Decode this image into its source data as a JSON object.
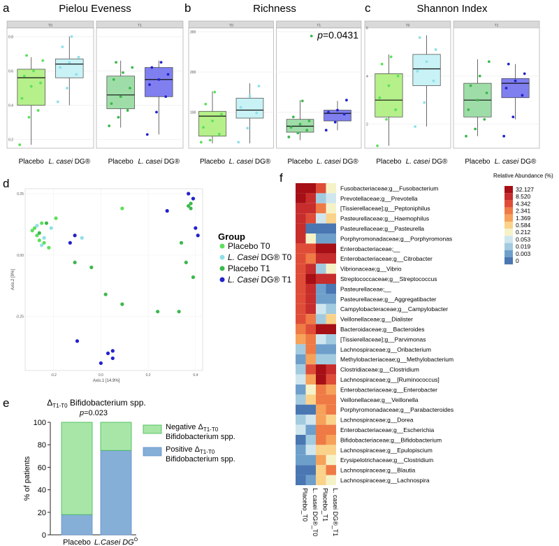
{
  "colors": {
    "placebo_t0": "#5CE05C",
    "casei_t0": "#8EE0E8",
    "placebo_t1": "#3CB84C",
    "casei_t1": "#2222CC",
    "box_placebo_t0": "#B5F08A",
    "box_casei_t0": "#C8F2F5",
    "box_placebo_t1": "#9FDDA8",
    "box_casei_t1": "#7F7FF0",
    "bar_negative": "#A8E6A8",
    "bar_positive": "#86AFD8"
  },
  "panel_labels": [
    "a",
    "b",
    "c",
    "d",
    "e",
    "f"
  ],
  "box_panels": [
    {
      "title": "Pielou Eveness",
      "facets": [
        "T0",
        "T1"
      ],
      "ylim": [
        0.15,
        0.85
      ],
      "yticks": [
        "0.2",
        "0.4",
        "0.6",
        "0.8"
      ],
      "ytick_values": [
        0.2,
        0.4,
        0.6,
        0.8
      ],
      "pvalue": "",
      "groups": [
        {
          "facet": 0,
          "label": "Placebo",
          "italic": "",
          "suffix": "",
          "color": "placebo_t0",
          "box": "box_placebo_t0",
          "min": 0.17,
          "q1": 0.4,
          "median": 0.56,
          "q3": 0.61,
          "max": 0.68,
          "points": [
            0.17,
            0.33,
            0.37,
            0.44,
            0.51,
            0.53,
            0.57,
            0.6,
            0.66,
            0.69
          ]
        },
        {
          "facet": 0,
          "label": "",
          "italic": "L. casei",
          "suffix": " DG®",
          "color": "casei_t0",
          "box": "box_casei_t0",
          "min": 0.4,
          "q1": 0.56,
          "median": 0.64,
          "q3": 0.67,
          "max": 0.8,
          "points": [
            0.42,
            0.5,
            0.58,
            0.62,
            0.65,
            0.68,
            0.74,
            0.8
          ]
        },
        {
          "facet": 1,
          "label": "Placebo",
          "italic": "",
          "suffix": "",
          "color": "placebo_t1",
          "box": "box_placebo_t1",
          "min": 0.27,
          "q1": 0.38,
          "median": 0.46,
          "q3": 0.57,
          "max": 0.66,
          "points": [
            0.28,
            0.33,
            0.37,
            0.41,
            0.45,
            0.5,
            0.55,
            0.59,
            0.62,
            0.65
          ]
        },
        {
          "facet": 1,
          "label": "",
          "italic": "L. casei",
          "suffix": " DG®",
          "color": "casei_t1",
          "box": "box_casei_t1",
          "min": 0.23,
          "q1": 0.45,
          "median": 0.55,
          "q3": 0.62,
          "max": 0.66,
          "points": [
            0.23,
            0.36,
            0.45,
            0.52,
            0.55,
            0.58,
            0.62,
            0.65
          ]
        }
      ]
    },
    {
      "title": "Richness",
      "facets": [
        "T0",
        "T1"
      ],
      "ylim": [
        10,
        310
      ],
      "yticks": [
        "100",
        "200",
        "300"
      ],
      "ytick_values": [
        100,
        200,
        300
      ],
      "pvalue": "=0.0431",
      "groups": [
        {
          "facet": 0,
          "label": "Placebo",
          "italic": "",
          "suffix": "",
          "color": "placebo_t0",
          "box": "box_placebo_t0",
          "min": 22,
          "q1": 40,
          "median": 90,
          "q3": 102,
          "max": 152,
          "points": [
            25,
            30,
            45,
            62,
            78,
            95,
            120,
            150
          ]
        },
        {
          "facet": 0,
          "label": "",
          "italic": "L. casei",
          "suffix": " DG®",
          "color": "casei_t0",
          "box": "box_casei_t0",
          "min": 22,
          "q1": 85,
          "median": 105,
          "q3": 135,
          "max": 172,
          "points": [
            25,
            60,
            98,
            112,
            140,
            165
          ]
        },
        {
          "facet": 1,
          "label": "Placebo",
          "italic": "",
          "suffix": "",
          "color": "placebo_t1",
          "box": "box_placebo_t1",
          "min": 30,
          "q1": 50,
          "median": 65,
          "q3": 82,
          "max": 130,
          "points": [
            38,
            48,
            55,
            62,
            70,
            78,
            88,
            128,
            290
          ]
        },
        {
          "facet": 1,
          "label": "",
          "italic": "L. casei",
          "suffix": " DG®",
          "color": "casei_t1",
          "box": "box_casei_t1",
          "min": 55,
          "q1": 78,
          "median": 97,
          "q3": 105,
          "max": 128,
          "points": [
            55,
            75,
            95,
            100,
            105,
            130
          ]
        }
      ]
    },
    {
      "title": "Shannon Index",
      "facets": [
        "T0",
        "T1"
      ],
      "ylim": [
        1,
        6
      ],
      "yticks": [
        "2",
        "4",
        "6"
      ],
      "ytick_values": [
        2,
        4,
        6
      ],
      "pvalue": "",
      "groups": [
        {
          "facet": 0,
          "label": "Placebo",
          "italic": "",
          "suffix": "",
          "color": "placebo_t0",
          "box": "box_placebo_t0",
          "min": 1.1,
          "q1": 2.3,
          "median": 3.0,
          "q3": 4.1,
          "max": 4.9,
          "points": [
            1.1,
            2.2,
            2.6,
            3.1,
            3.6,
            4.0,
            4.5,
            4.8
          ]
        },
        {
          "facet": 0,
          "label": "",
          "italic": "L. casei",
          "suffix": " DG®",
          "color": "casei_t0",
          "box": "box_casei_t0",
          "min": 1.9,
          "q1": 3.6,
          "median": 4.3,
          "q3": 4.9,
          "max": 5.7,
          "points": [
            1.9,
            2.9,
            3.8,
            4.2,
            4.6,
            5.1,
            5.6
          ]
        },
        {
          "facet": 1,
          "label": "Placebo",
          "italic": "",
          "suffix": "",
          "color": "placebo_t1",
          "box": "box_placebo_t1",
          "min": 1.5,
          "q1": 2.3,
          "median": 3.0,
          "q3": 3.7,
          "max": 4.7,
          "points": [
            1.5,
            1.8,
            2.2,
            2.6,
            3.0,
            3.3,
            3.6,
            4.0,
            4.6
          ]
        },
        {
          "facet": 1,
          "label": "",
          "italic": "L. casei",
          "suffix": " DG®",
          "color": "casei_t1",
          "box": "box_casei_t1",
          "min": 2.2,
          "q1": 3.1,
          "median": 3.7,
          "q3": 3.9,
          "max": 4.5,
          "points": [
            1.5,
            2.3,
            3.2,
            3.5,
            3.8,
            4.1,
            4.5
          ]
        }
      ]
    }
  ],
  "pcoa": {
    "xlabel": "Axis.1  [14.9%]",
    "ylabel": "Axis.2  [9%]",
    "xlim": [
      -0.32,
      0.43
    ],
    "ylim": [
      -0.47,
      0.27
    ],
    "xticks": [
      "-0.2",
      "0.0",
      "0.2",
      "0.4"
    ],
    "xtick_values": [
      -0.2,
      0.0,
      0.2,
      0.4
    ],
    "yticks": [
      "0.25",
      "0.00",
      "-0.25"
    ],
    "ytick_values": [
      0.25,
      0.0,
      -0.25
    ],
    "legend_title": "Group",
    "legend": [
      {
        "pre": "Placebo T0",
        "italic": "",
        "post": "",
        "color": "placebo_t0"
      },
      {
        "pre": "",
        "italic": "L. Casei",
        "post": " DG® T0",
        "color": "casei_t0"
      },
      {
        "pre": "Placebo T1",
        "italic": "",
        "post": "",
        "color": "placebo_t1"
      },
      {
        "pre": "",
        "italic": "L. Casei",
        "post": " DG® T1",
        "color": "casei_t1"
      }
    ],
    "points": [
      {
        "g": "placebo_t0",
        "x": -0.29,
        "y": 0.1
      },
      {
        "g": "placebo_t0",
        "x": -0.28,
        "y": 0.11
      },
      {
        "g": "placebo_t0",
        "x": -0.27,
        "y": 0.08
      },
      {
        "g": "placebo_t0",
        "x": -0.26,
        "y": 0.06
      },
      {
        "g": "placebo_t0",
        "x": -0.24,
        "y": 0.05
      },
      {
        "g": "placebo_t0",
        "x": -0.25,
        "y": 0.13
      },
      {
        "g": "placebo_t0",
        "x": -0.22,
        "y": 0.03
      },
      {
        "g": "placebo_t0",
        "x": -0.19,
        "y": 0.15
      },
      {
        "g": "placebo_t0",
        "x": 0.09,
        "y": 0.19
      },
      {
        "g": "casei_t0",
        "x": -0.25,
        "y": 0.04
      },
      {
        "g": "casei_t0",
        "x": -0.24,
        "y": 0.07
      },
      {
        "g": "casei_t0",
        "x": -0.21,
        "y": 0.11
      },
      {
        "g": "casei_t0",
        "x": -0.08,
        "y": 0.07
      },
      {
        "g": "casei_t0",
        "x": -0.27,
        "y": 0.12
      },
      {
        "g": "placebo_t1",
        "x": -0.26,
        "y": 0.09
      },
      {
        "g": "placebo_t1",
        "x": -0.23,
        "y": 0.13
      },
      {
        "g": "placebo_t1",
        "x": -0.11,
        "y": -0.03
      },
      {
        "g": "placebo_t1",
        "x": -0.04,
        "y": -0.05
      },
      {
        "g": "placebo_t1",
        "x": 0.02,
        "y": -0.16
      },
      {
        "g": "placebo_t1",
        "x": 0.09,
        "y": -0.2
      },
      {
        "g": "placebo_t1",
        "x": 0.24,
        "y": -0.23
      },
      {
        "g": "placebo_t1",
        "x": 0.33,
        "y": -0.23
      },
      {
        "g": "placebo_t1",
        "x": 0.34,
        "y": 0.05
      },
      {
        "g": "placebo_t1",
        "x": 0.36,
        "y": -0.03
      },
      {
        "g": "placebo_t1",
        "x": 0.37,
        "y": 0.2
      },
      {
        "g": "placebo_t1",
        "x": 0.38,
        "y": 0.19
      },
      {
        "g": "placebo_t1",
        "x": 0.39,
        "y": 0.23
      },
      {
        "g": "placebo_t1",
        "x": 0.39,
        "y": -0.09
      },
      {
        "g": "placebo_t1",
        "x": 0.38,
        "y": 0.21
      },
      {
        "g": "casei_t1",
        "x": -0.13,
        "y": 0.05
      },
      {
        "g": "casei_t1",
        "x": -0.11,
        "y": 0.08
      },
      {
        "g": "casei_t1",
        "x": -0.1,
        "y": -0.35
      },
      {
        "g": "casei_t1",
        "x": 0.03,
        "y": -0.4
      },
      {
        "g": "casei_t1",
        "x": 0.05,
        "y": -0.42
      },
      {
        "g": "casei_t1",
        "x": 0.05,
        "y": -0.39
      },
      {
        "g": "casei_t1",
        "x": 0.0,
        "y": -0.44
      },
      {
        "g": "casei_t1",
        "x": 0.28,
        "y": 0.18
      },
      {
        "g": "casei_t1",
        "x": 0.37,
        "y": 0.25
      },
      {
        "g": "casei_t1",
        "x": 0.39,
        "y": 0.23
      },
      {
        "g": "casei_t1",
        "x": 0.4,
        "y": 0.11
      },
      {
        "g": "casei_t1",
        "x": 0.41,
        "y": 0.08
      }
    ]
  },
  "stacked_bar": {
    "title_pre": "Δ",
    "title_sub": "T1-T0",
    "title_post": " Bifidobacterium spp.",
    "pvalue": "=0.023",
    "ylabel": "% of patients",
    "yticks": [
      "0",
      "20",
      "40",
      "60",
      "80",
      "100"
    ],
    "ytick_values": [
      0,
      20,
      40,
      60,
      80,
      100
    ],
    "categories": [
      {
        "label": "Placebo",
        "positive": 18,
        "negative": 82
      },
      {
        "label": "L.Casei DG",
        "sup": "Ò",
        "positive": 75,
        "negative": 25
      }
    ],
    "legend": [
      {
        "line1_pre": "Negative Δ",
        "line1_sub": "T1-T0",
        "line2": "Bifidobacterium spp.",
        "color": "bar_negative"
      },
      {
        "line1_pre": "Positive Δ",
        "line1_sub": "T1-T0",
        "line2": "Bifidobacterium spp.",
        "color": "bar_positive"
      }
    ]
  },
  "heatmap": {
    "legend_title": "Relative Abundance (%)",
    "legend_values": [
      "32.127",
      "8.520",
      "4.342",
      "2.341",
      "1.369",
      "0.584",
      "0.212",
      "0.053",
      "0.019",
      "0.003",
      "0"
    ],
    "legend_colors": [
      "#A50F15",
      "#C72D2D",
      "#DF4D38",
      "#EF7A45",
      "#F6A25A",
      "#FBD28A",
      "#F6F2C8",
      "#CFE6EF",
      "#A2CBE0",
      "#6E9FCB",
      "#4A76B2"
    ],
    "columns": [
      "Placebo_T0",
      "L. casei DG®_T0",
      "Placebo_T1",
      "L. casei DG®_T1"
    ],
    "rows": [
      {
        "label": "Fusobacteriaceae;g__Fusobacterium",
        "v": [
          0,
          0,
          2,
          6
        ]
      },
      {
        "label": "Prevotellaceae;g__Prevotella",
        "v": [
          0,
          1,
          8,
          7
        ]
      },
      {
        "label": "[Tissierellaceae];g__Peptoniphilus",
        "v": [
          1,
          1,
          3,
          6
        ]
      },
      {
        "label": "Pasteurellaceae;g__Haemophilus",
        "v": [
          1,
          2,
          7,
          5
        ]
      },
      {
        "label": "Pasteurellaceae;g__Pasteurella",
        "v": [
          1,
          10,
          10,
          10
        ]
      },
      {
        "label": "Porphyromonadaceae;g__Porphyromonas",
        "v": [
          1,
          6,
          9,
          9
        ]
      },
      {
        "label": "Enterobacteriaceae;__",
        "v": [
          2,
          2,
          0,
          0
        ]
      },
      {
        "label": "Enterobacteriaceae;g__Citrobacter",
        "v": [
          2,
          3,
          1,
          1
        ]
      },
      {
        "label": "Vibrionaceae;g__Vibrio",
        "v": [
          2,
          1,
          8,
          6
        ]
      },
      {
        "label": "Streptococcaceae;g__Streptococcus",
        "v": [
          2,
          0,
          1,
          1
        ]
      },
      {
        "label": "Pasteurellaceae;__",
        "v": [
          2,
          1,
          9,
          10
        ]
      },
      {
        "label": "Pasteurellaceae;g__Aggregatibacter",
        "v": [
          2,
          1,
          9,
          9
        ]
      },
      {
        "label": "Campylobacteraceae;g__Campylobacter",
        "v": [
          2,
          1,
          7,
          8
        ]
      },
      {
        "label": "Veillonellaceae;g__Dialister",
        "v": [
          2,
          3,
          8,
          5
        ]
      },
      {
        "label": "Bacteroidaceae;g__Bacteroides",
        "v": [
          3,
          2,
          0,
          0
        ]
      },
      {
        "label": "[Tissierellaceae];g__Parvimonas",
        "v": [
          4,
          3,
          7,
          8
        ]
      },
      {
        "label": "Lachnospiraceae;g__Oribacterium",
        "v": [
          8,
          3,
          9,
          9
        ]
      },
      {
        "label": "Methylobacteriaceae;g__Methylobacterium",
        "v": [
          9,
          4,
          8,
          8
        ]
      },
      {
        "label": "Clostridiaceae;g__Clostridium",
        "v": [
          8,
          2,
          0,
          1
        ]
      },
      {
        "label": "Lachnospiraceae;g__[Ruminococcus]",
        "v": [
          7,
          4,
          0,
          2
        ]
      },
      {
        "label": "Enterobacteriaceae;g__Enterobacter",
        "v": [
          9,
          6,
          3,
          4
        ]
      },
      {
        "label": "Veillonellaceae;g__Veillonella",
        "v": [
          8,
          5,
          3,
          3
        ]
      },
      {
        "label": "Porphyromonadaceae;g__Parabacteroides",
        "v": [
          10,
          10,
          4,
          3
        ]
      },
      {
        "label": "Lachnospiraceae;g__Dorea",
        "v": [
          8,
          7,
          4,
          5
        ]
      },
      {
        "label": "Enterobacteriaceae;g__Escherichia",
        "v": [
          7,
          9,
          3,
          3
        ]
      },
      {
        "label": "Bifidobacteriaceae;g__Bifidobacterium",
        "v": [
          10,
          8,
          3,
          4
        ]
      },
      {
        "label": "Lachnospiraceae;g__Epulopiscium",
        "v": [
          9,
          7,
          5,
          5
        ]
      },
      {
        "label": "Erysipelotrichaceae;g__Clostridium",
        "v": [
          9,
          9,
          4,
          6
        ]
      },
      {
        "label": "Lachnospiraceae;g__Blautia",
        "v": [
          10,
          10,
          5,
          3
        ]
      },
      {
        "label": "Lachnospiraceae;g__Lachnospira",
        "v": [
          10,
          9,
          5,
          6
        ]
      }
    ]
  },
  "chart_data": [
    {
      "type": "box",
      "title": "Pielou Eveness",
      "facets": [
        "T0",
        "T1"
      ],
      "categories": [
        "Placebo",
        "L. casei DG®",
        "Placebo",
        "L. casei DG®"
      ],
      "ylim": [
        0.15,
        0.85
      ]
    },
    {
      "type": "box",
      "title": "Richness",
      "facets": [
        "T0",
        "T1"
      ],
      "categories": [
        "Placebo",
        "L. casei DG®",
        "Placebo",
        "L. casei DG®"
      ],
      "ylim": [
        10,
        310
      ],
      "annotation": "p=0.0431"
    },
    {
      "type": "box",
      "title": "Shannon Index",
      "facets": [
        "T0",
        "T1"
      ],
      "categories": [
        "Placebo",
        "L. casei DG®",
        "Placebo",
        "L. casei DG®"
      ],
      "ylim": [
        1,
        6
      ]
    },
    {
      "type": "scatter",
      "title": "PCoA",
      "xlabel": "Axis.1 [14.9%]",
      "ylabel": "Axis.2 [9%]",
      "xlim": [
        -0.32,
        0.43
      ],
      "ylim": [
        -0.47,
        0.27
      ]
    },
    {
      "type": "bar",
      "title": "ΔT1-T0 Bifidobacterium spp.",
      "categories": [
        "Placebo",
        "L.Casei DG"
      ],
      "series": [
        {
          "name": "Positive ΔT1-T0 Bifidobacterium spp.",
          "values": [
            18,
            75
          ]
        },
        {
          "name": "Negative ΔT1-T0 Bifidobacterium spp.",
          "values": [
            82,
            25
          ]
        }
      ],
      "ylabel": "% of patients",
      "ylim": [
        0,
        100
      ],
      "annotation": "p=0.023"
    },
    {
      "type": "heatmap",
      "title": "Relative Abundance (%)",
      "columns": [
        "Placebo_T0",
        "L. casei DG®_T0",
        "Placebo_T1",
        "L. casei DG®_T1"
      ]
    }
  ]
}
